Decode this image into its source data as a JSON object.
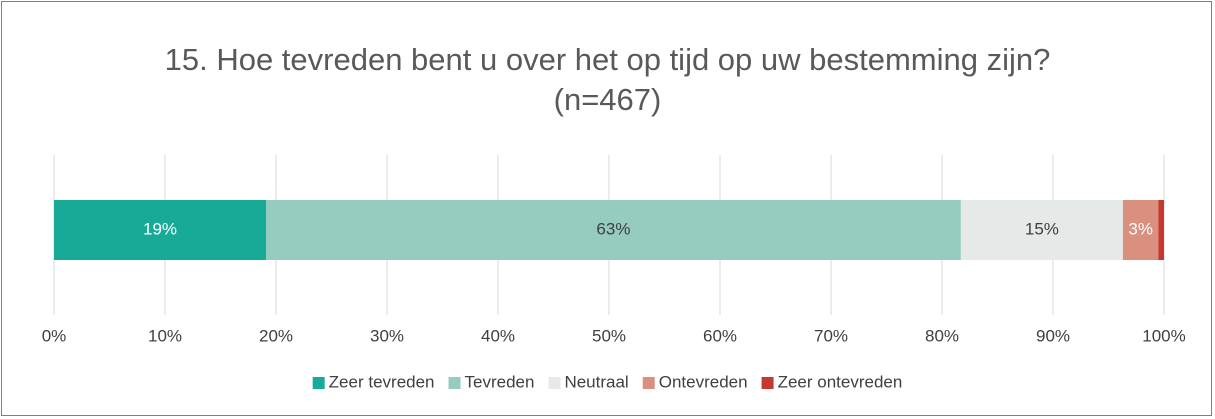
{
  "chart_data": {
    "type": "stacked-bar",
    "orientation": "horizontal",
    "title": "15. Hoe tevreden bent u over het op tijd op uw bestemming zijn? (n=467)",
    "categories": [
      null
    ],
    "series": [
      {
        "name": "Zeer tevreden",
        "color": "#17ab97",
        "values": [
          19.1
        ],
        "value_labels": [
          "19%"
        ]
      },
      {
        "name": "Tevreden",
        "color": "#96cbbf",
        "values": [
          62.6
        ],
        "value_labels": [
          "63%"
        ]
      },
      {
        "name": "Neutraal",
        "color": "#e5e9e8",
        "values": [
          14.6
        ],
        "value_labels": [
          "15%"
        ]
      },
      {
        "name": "Ontevreden",
        "color": "#d9907f",
        "values": [
          3.2
        ],
        "value_labels": [
          "3%"
        ]
      },
      {
        "name": "Zeer ontevreden",
        "color": "#c8372d",
        "values": [
          0.5
        ]
      }
    ],
    "xlim": [
      0,
      100
    ],
    "xticks": [
      {
        "value": 0,
        "label": "0%"
      },
      {
        "value": 10,
        "label": "10%"
      },
      {
        "value": 20,
        "label": "20%"
      },
      {
        "value": 30,
        "label": "30%"
      },
      {
        "value": 40,
        "label": "40%"
      },
      {
        "value": 50,
        "label": "50%"
      },
      {
        "value": 60,
        "label": "60%"
      },
      {
        "value": 70,
        "label": "70%"
      },
      {
        "value": 80,
        "label": "80%"
      },
      {
        "value": 90,
        "label": "90%"
      },
      {
        "value": 100,
        "label": "100%"
      }
    ],
    "grid": true,
    "legend": "bottom"
  }
}
